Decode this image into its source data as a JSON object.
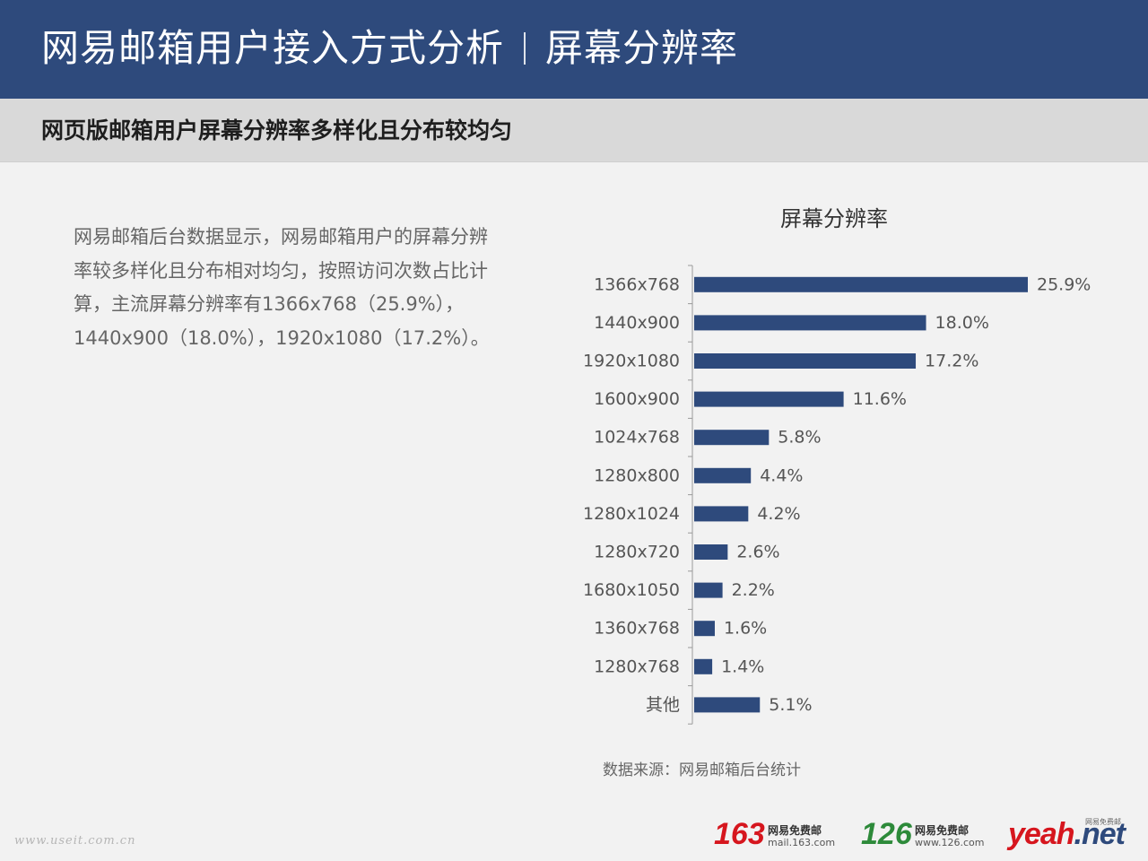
{
  "header": {
    "title": "网易邮箱用户接入方式分析",
    "section": "屏幕分辨率"
  },
  "subtitle": "网页版邮箱用户屏幕分辨率多样化且分布较均匀",
  "description": "网易邮箱后台数据显示，网易邮箱用户的屏幕分辨率较多样化且分布相对均匀，按照访问次数占比计算，主流屏幕分辨率有1366x768（25.9%），1440x900（18.0%），1920x1080（17.2%）。",
  "source": "数据来源：网易邮箱后台统计",
  "watermark": "www.useit.com.cn",
  "logos": {
    "mail163": {
      "number": "163",
      "name": "网易免费邮",
      "url": "mail.163.com"
    },
    "mail126": {
      "number": "126",
      "name": "网易免费邮",
      "url": "www.126.com"
    },
    "yeah": {
      "brand": "yeah",
      "suffix": ".net",
      "tag": "网易免费邮"
    }
  },
  "colors": {
    "header_bg": "#2e4a7c",
    "bar": "#2e4a7c",
    "logo_red": "#d6161e",
    "logo_green": "#2d8a3a"
  },
  "chart_data": {
    "type": "bar",
    "orientation": "horizontal",
    "title": "屏幕分辨率",
    "categories": [
      "1366x768",
      "1440x900",
      "1920x1080",
      "1600x900",
      "1024x768",
      "1280x800",
      "1280x1024",
      "1280x720",
      "1680x1050",
      "1360x768",
      "1280x768",
      "其他"
    ],
    "values": [
      25.9,
      18.0,
      17.2,
      11.6,
      5.8,
      4.4,
      4.2,
      2.6,
      2.2,
      1.6,
      1.4,
      5.1
    ],
    "value_labels": [
      "25.9%",
      "18.0%",
      "17.2%",
      "11.6%",
      "5.8%",
      "4.4%",
      "4.2%",
      "2.6%",
      "2.2%",
      "1.6%",
      "1.4%",
      "5.1%"
    ],
    "unit": "%",
    "xlim": [
      0,
      25.9
    ],
    "grid": false,
    "legend": "none"
  }
}
